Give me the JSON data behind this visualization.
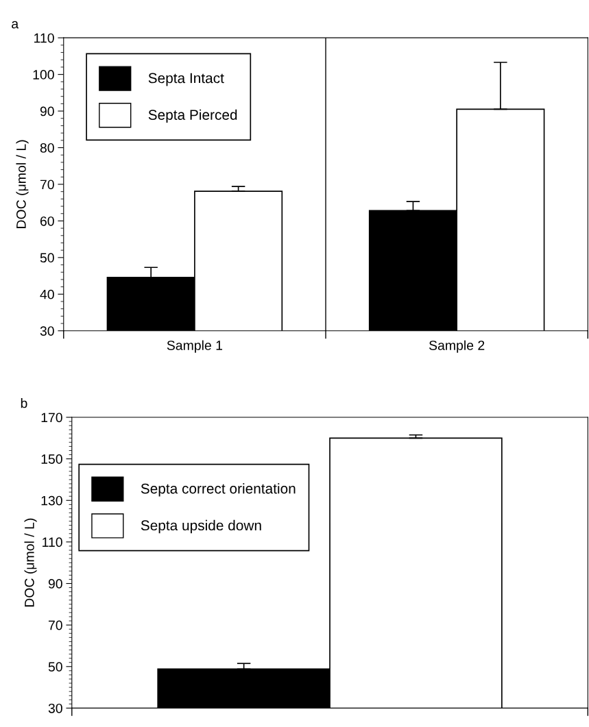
{
  "chart_data": [
    {
      "type": "bar",
      "title": "a",
      "ylabel": "DOC (μmol / L)",
      "categories": [
        "Sample 1",
        "Sample 2"
      ],
      "series": [
        {
          "name": "Septa Intact",
          "color": "#000000",
          "values": [
            44.6,
            62.8
          ],
          "errors": [
            [
              44.6,
              47.3
            ],
            [
              62.8,
              65.3
            ]
          ]
        },
        {
          "name": "Septa Pierced",
          "color": "#ffffff",
          "values": [
            68.1,
            90.5
          ],
          "errors": [
            [
              68.1,
              69.4
            ],
            [
              90.5,
              103.3
            ]
          ]
        }
      ],
      "ylim": [
        30,
        110
      ],
      "yticks": [
        30,
        40,
        50,
        60,
        70,
        80,
        90,
        100,
        110
      ],
      "legend": "top left",
      "grid": false
    },
    {
      "type": "bar",
      "title": "b",
      "ylabel": "DOC (μmol / L)",
      "categories": [
        null
      ],
      "series": [
        {
          "name": "Septa correct orientation",
          "color": "#000000",
          "values": [
            48.8
          ],
          "errors": [
            [
              48.8,
              51.5
            ]
          ]
        },
        {
          "name": "Septa upside down",
          "color": "#ffffff",
          "values": [
            160
          ],
          "errors": [
            [
              160,
              161.5
            ]
          ]
        }
      ],
      "ylim": [
        30,
        170
      ],
      "yticks": [
        30,
        50,
        70,
        90,
        110,
        130,
        150,
        170
      ],
      "legend": "left",
      "grid": false
    }
  ]
}
